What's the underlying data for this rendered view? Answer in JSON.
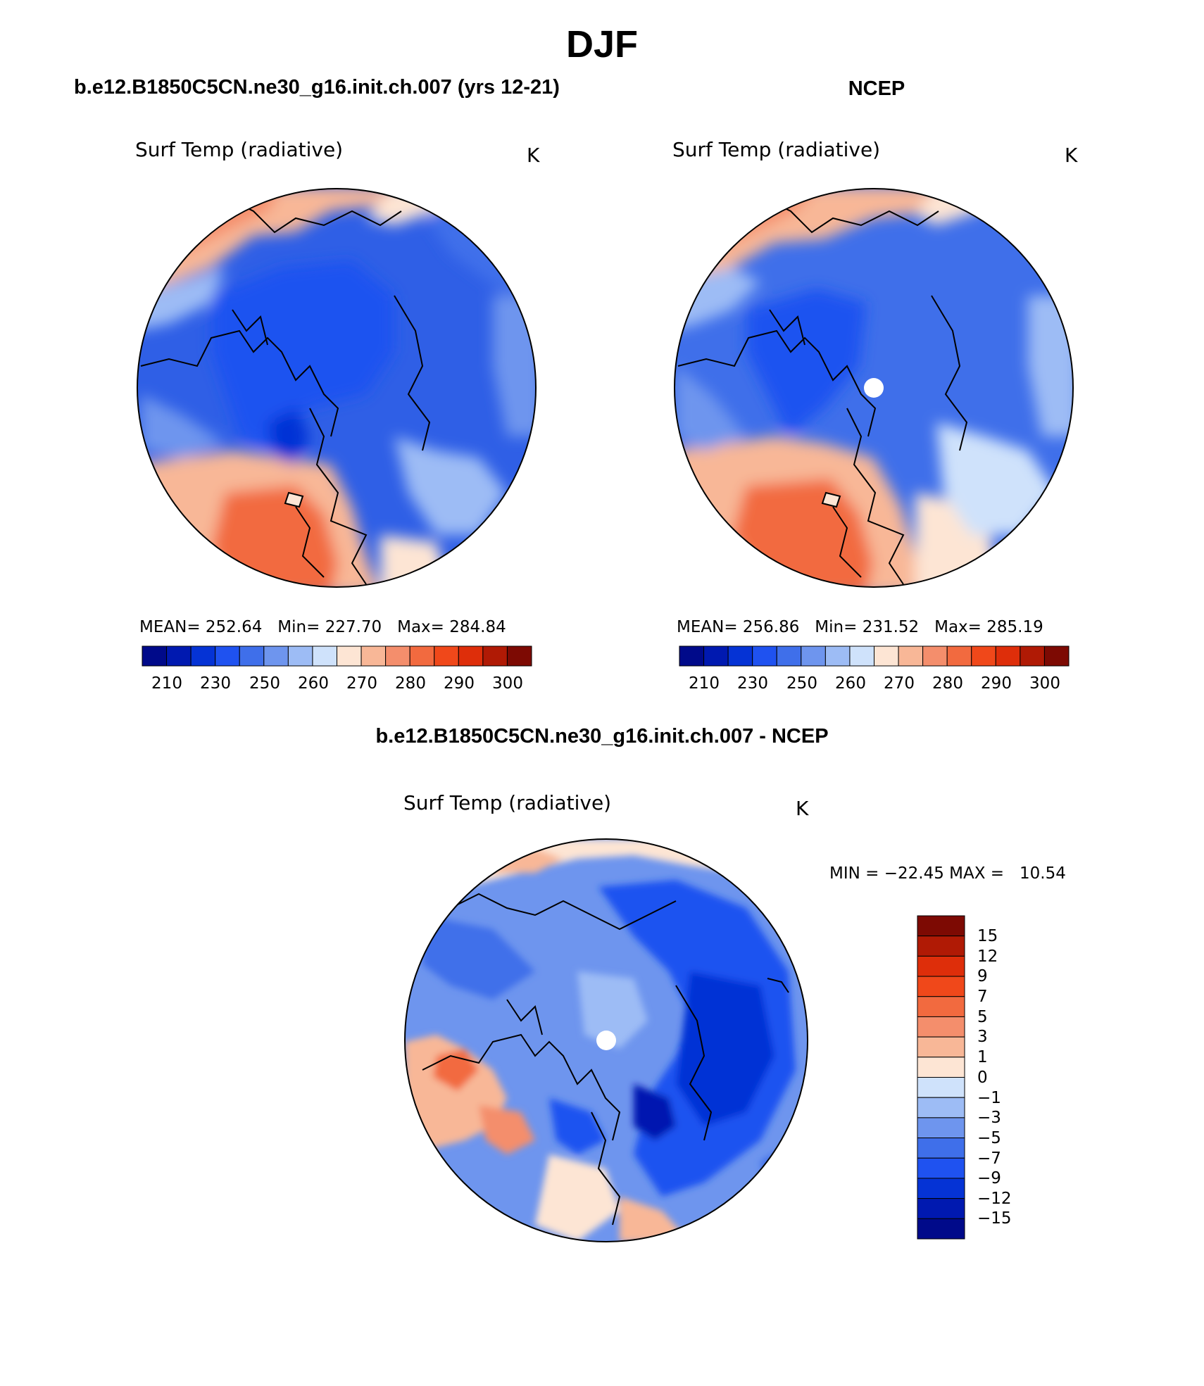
{
  "main_title": "DJF",
  "left_panel": {
    "case_title": "b.e12.B1850C5CN.ne30_g16.init.ch.007 (yrs 12-21)",
    "variable": "Surf Temp (radiative)",
    "units": "K",
    "stats": "MEAN= 252.64   Min= 227.70   Max= 284.84",
    "mean": 252.64,
    "min": 227.7,
    "max": 284.84
  },
  "right_panel": {
    "case_title": "NCEP",
    "variable": "Surf Temp (radiative)",
    "units": "K",
    "stats": "MEAN= 256.86   Min= 231.52   Max= 285.19",
    "mean": 256.86,
    "min": 231.52,
    "max": 285.19
  },
  "diff_panel": {
    "case_title": "b.e12.B1850C5CN.ne30_g16.init.ch.007 - NCEP",
    "variable": "Surf Temp (radiative)",
    "units": "K",
    "stats": "MIN = −22.45 MAX =   10.54",
    "min": -22.45,
    "max": 10.54
  },
  "chart_data": [
    {
      "type": "heatmap",
      "projection": "north-polar-stereographic",
      "title": "Surf Temp (radiative)",
      "units": "K",
      "colorbar_ticks": [
        "210",
        "230",
        "250",
        "260",
        "270",
        "280",
        "290",
        "300"
      ],
      "colorbar_colors": [
        "#000a8a",
        "#0019b0",
        "#0533d5",
        "#1f52f0",
        "#3f6fea",
        "#6e95ee",
        "#9dbcf5",
        "#cfe2fb",
        "#fde5d4",
        "#f8b797",
        "#f48e6c",
        "#f26a3f",
        "#f0481a",
        "#de2e0a",
        "#b01a05",
        "#7d0a03"
      ]
    },
    {
      "type": "heatmap",
      "projection": "north-polar-stereographic",
      "title": "Surf Temp (radiative)",
      "units": "K",
      "colorbar_ticks": [
        "210",
        "230",
        "250",
        "260",
        "270",
        "280",
        "290",
        "300"
      ],
      "colorbar_colors": [
        "#000a8a",
        "#0019b0",
        "#0533d5",
        "#1f52f0",
        "#3f6fea",
        "#6e95ee",
        "#9dbcf5",
        "#cfe2fb",
        "#fde5d4",
        "#f8b797",
        "#f48e6c",
        "#f26a3f",
        "#f0481a",
        "#de2e0a",
        "#b01a05",
        "#7d0a03"
      ]
    },
    {
      "type": "heatmap",
      "projection": "north-polar-stereographic",
      "title": "Surf Temp (radiative)",
      "units": "K",
      "colorbar_ticks": [
        "15",
        "12",
        "9",
        "7",
        "5",
        "3",
        "1",
        "0",
        "−1",
        "−3",
        "−5",
        "−7",
        "−9",
        "−12",
        "−15"
      ],
      "colorbar_colors": [
        "#7d0a03",
        "#b01a05",
        "#de2e0a",
        "#f0481a",
        "#f26a3f",
        "#f48e6c",
        "#f8b797",
        "#fde5d4",
        "#cfe2fb",
        "#9dbcf5",
        "#6e95ee",
        "#3f6fea",
        "#1f52f0",
        "#0533d5",
        "#0019b0",
        "#000a8a"
      ]
    }
  ]
}
